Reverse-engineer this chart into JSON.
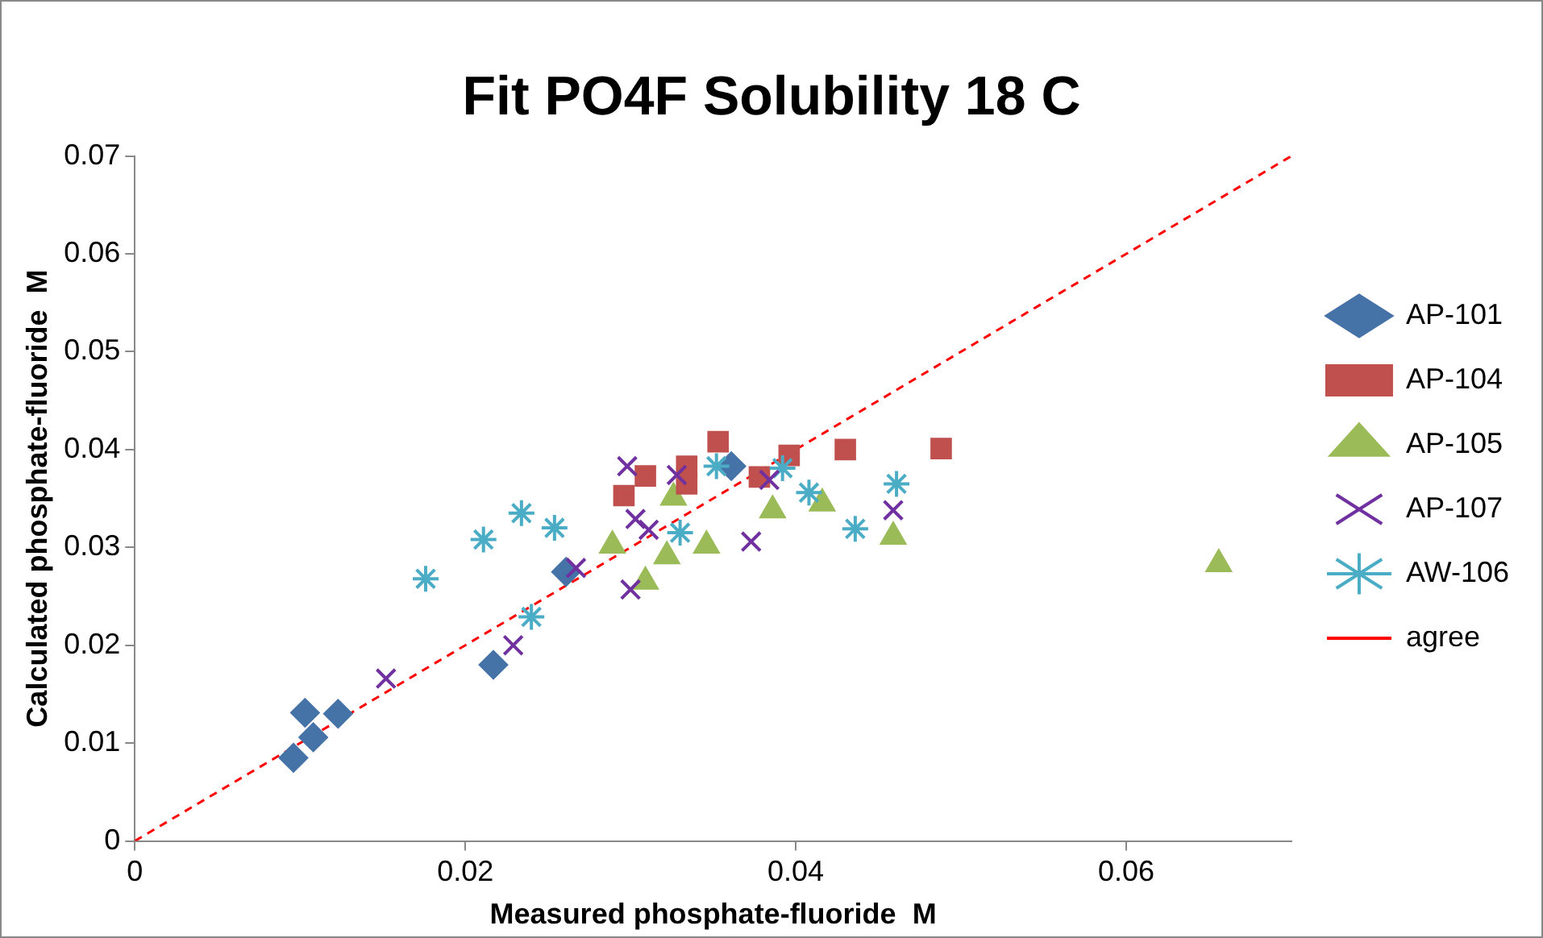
{
  "chart_data": {
    "type": "scatter",
    "title": "Fit PO4F Solubility 18 C",
    "xlabel": "Measured phosphate-fluoride  M",
    "ylabel": "Calculated phosphate-fluoride  M",
    "xlim": [
      0,
      0.07
    ],
    "xticks": [
      0,
      0.02,
      0.04,
      0.06
    ],
    "ylim": [
      0,
      0.07
    ],
    "yticks": [
      0,
      0.01,
      0.02,
      0.03,
      0.04,
      0.05,
      0.06,
      0.07
    ],
    "grid": false,
    "legend": "right",
    "series": [
      {
        "name": "AP-101",
        "color": "#4572a7",
        "marker": "diamond",
        "x": [
          0.0096,
          0.0103,
          0.0108,
          0.0123,
          0.0217,
          0.0261,
          0.0361
        ],
        "values": [
          0.0085,
          0.0131,
          0.0106,
          0.013,
          0.018,
          0.0275,
          0.0383
        ]
      },
      {
        "name": "AP-104",
        "color": "#c0504d",
        "marker": "square",
        "x": [
          0.0296,
          0.0309,
          0.0334,
          0.0334,
          0.0353,
          0.0378,
          0.0396,
          0.043,
          0.0488
        ],
        "values": [
          0.0353,
          0.0373,
          0.0383,
          0.0365,
          0.0408,
          0.0372,
          0.0394,
          0.04,
          0.0401
        ]
      },
      {
        "name": "AP-105",
        "color": "#9bbb59",
        "marker": "triangle",
        "x": [
          0.0289,
          0.0309,
          0.0322,
          0.0326,
          0.0346,
          0.0386,
          0.0416,
          0.0459,
          0.0656
        ],
        "values": [
          0.0302,
          0.0265,
          0.0291,
          0.0351,
          0.0302,
          0.0338,
          0.0345,
          0.0311,
          0.0283
        ]
      },
      {
        "name": "AP-107",
        "color": "#7030a0",
        "x": [
          0.0152,
          0.0229,
          0.0267,
          0.0298,
          0.0303,
          0.0311,
          0.0328,
          0.03,
          0.0373,
          0.0384,
          0.0459
        ],
        "values": [
          0.0166,
          0.02,
          0.0279,
          0.0383,
          0.0329,
          0.0318,
          0.0374,
          0.0257,
          0.0306,
          0.0369,
          0.0338
        ]
      },
      {
        "name": "AW-106",
        "color": "#4bacc6",
        "x": [
          0.0176,
          0.0211,
          0.0234,
          0.0254,
          0.024,
          0.0352,
          0.033,
          0.0392,
          0.0408,
          0.0436,
          0.0461
        ],
        "values": [
          0.0268,
          0.0308,
          0.0335,
          0.032,
          0.0229,
          0.0383,
          0.0315,
          0.0381,
          0.0356,
          0.0319,
          0.0365
        ]
      },
      {
        "name": "agree",
        "type": "line",
        "color": "#ff0000",
        "line_style": "dashed",
        "marker": "none",
        "x": [
          0,
          0.07
        ],
        "values": [
          0,
          0.07
        ]
      }
    ]
  }
}
